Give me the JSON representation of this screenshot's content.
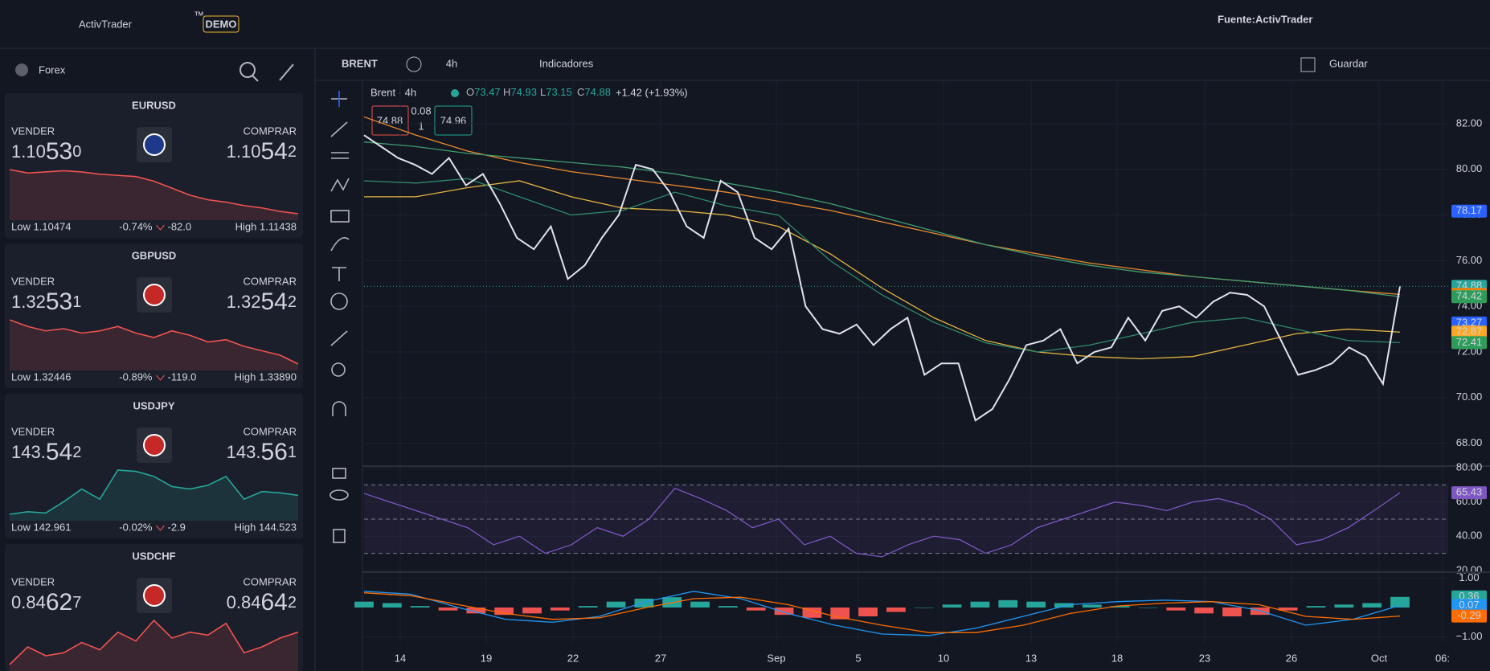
{
  "header": {
    "logo": "ActivTrader",
    "trademark": "™",
    "badge": "DEMO",
    "source": "Fuente:ActivTrader"
  },
  "sidebar": {
    "title": "Forex",
    "sell_label": "VENDER",
    "buy_label": "COMPRAR",
    "cards": [
      {
        "pair": "EURUSD",
        "trend": "down",
        "sell": [
          "1.10",
          "53",
          "0"
        ],
        "buy": [
          "1.10",
          "54",
          "2"
        ],
        "low": "Low 1.10474",
        "change_pct": "-0.74%",
        "change_pts": "-82.0",
        "high": "High 1.11438",
        "spark": [
          1.1088,
          1.1085,
          1.1086,
          1.1087,
          1.1086,
          1.1084,
          1.1083,
          1.1082,
          1.1078,
          1.1072,
          1.1066,
          1.1062,
          1.106,
          1.1057,
          1.1055,
          1.1052,
          1.105
        ]
      },
      {
        "pair": "GBPUSD",
        "trend": "down",
        "sell": [
          "1.32",
          "53",
          "1"
        ],
        "buy": [
          "1.32",
          "54",
          "2"
        ],
        "low": "Low 1.32446",
        "change_pct": "-0.89%",
        "change_pts": "-119.0",
        "high": "High 1.33890",
        "spark": [
          1.3372,
          1.3369,
          1.3367,
          1.3368,
          1.3366,
          1.3367,
          1.3369,
          1.3366,
          1.3364,
          1.3367,
          1.3365,
          1.3362,
          1.3363,
          1.336,
          1.3358,
          1.3356,
          1.3352
        ]
      },
      {
        "pair": "USDJPY",
        "trend": "up",
        "sell": [
          "143.",
          "54",
          "2"
        ],
        "buy": [
          "143.",
          "56",
          "1"
        ],
        "low": "Low 142.961",
        "change_pct": "-0.02%",
        "change_pts": "-2.9",
        "high": "High 144.523",
        "spark": [
          143.1,
          143.12,
          143.11,
          143.2,
          143.3,
          143.22,
          143.45,
          143.44,
          143.4,
          143.32,
          143.3,
          143.33,
          143.4,
          143.22,
          143.28,
          143.27,
          143.25
        ]
      },
      {
        "pair": "USDCHF",
        "trend": "down",
        "sell": [
          "0.84",
          "62",
          "7"
        ],
        "buy": [
          "0.84",
          "64",
          "2"
        ],
        "low": "",
        "change_pct": "",
        "change_pts": "",
        "high": "",
        "spark": [
          0.844,
          0.8452,
          0.8446,
          0.8448,
          0.8455,
          0.845,
          0.8462,
          0.8456,
          0.847,
          0.8458,
          0.8462,
          0.846,
          0.8468,
          0.8448,
          0.8452,
          0.8458,
          0.8462
        ]
      }
    ]
  },
  "toolbar": {
    "symbol": "BRENT",
    "interval": "4h",
    "indicators": "Indicadores",
    "save": "Guardar"
  },
  "legend": {
    "title": "Brent · 4h",
    "ohlc": [
      {
        "k": "O",
        "v": 73.47
      },
      {
        "k": "H",
        "v": 74.93
      },
      {
        "k": "L",
        "v": 73.15
      },
      {
        "k": "C",
        "v": 74.88
      }
    ],
    "change": "+1.42 (+1.93%)",
    "bid": 74.88,
    "spread": 0.08,
    "qty": 1,
    "ask": 74.96
  },
  "time_axis": [
    "14",
    "19",
    "22",
    "27",
    "Sep",
    "5",
    "10",
    "13",
    "18",
    "23",
    "26",
    "Oct",
    "06:"
  ],
  "chart_data": [
    {
      "type": "line",
      "ylim": [
        67,
        83.9
      ],
      "yticks": [
        {
          "value": 68,
          "label": "68.00"
        },
        {
          "value": 70,
          "label": "70.00"
        },
        {
          "value": 72,
          "label": "72.00"
        },
        {
          "value": 74,
          "label": "74.00"
        },
        {
          "value": 76,
          "label": "76.00"
        },
        {
          "value": 78,
          "label": "78.00"
        },
        {
          "value": 80,
          "label": "80.00"
        },
        {
          "value": 82,
          "label": "82.00"
        }
      ],
      "series": [
        {
          "color": "#ef8a2e",
          "values": [
            82.3,
            81.5,
            80.8,
            80.3,
            79.9,
            79.6,
            79.3,
            79.0,
            78.6,
            78.2,
            77.7,
            77.2,
            76.7,
            76.3,
            75.9,
            75.6,
            75.3,
            75.1,
            74.9,
            74.7,
            74.52
          ]
        },
        {
          "color": "#3f9d6e",
          "values": [
            81.2,
            81.0,
            80.7,
            80.5,
            80.3,
            80.1,
            79.8,
            79.4,
            79.0,
            78.5,
            77.9,
            77.3,
            76.7,
            76.2,
            75.8,
            75.5,
            75.3,
            75.1,
            74.9,
            74.7,
            74.42
          ]
        },
        {
          "color": "#e3b341",
          "values": [
            78.8,
            78.8,
            79.2,
            79.5,
            78.8,
            78.3,
            78.2,
            78.0,
            77.5,
            76.3,
            74.8,
            73.5,
            72.5,
            72.0,
            71.8,
            71.7,
            71.8,
            72.3,
            72.8,
            73.0,
            72.87
          ]
        },
        {
          "color": "#2e8b6a",
          "values": [
            79.5,
            79.4,
            79.6,
            78.8,
            78.0,
            78.2,
            79.0,
            78.4,
            78.0,
            76.0,
            74.5,
            73.3,
            72.4,
            72.0,
            72.3,
            72.8,
            73.3,
            73.5,
            73.0,
            72.5,
            72.41
          ]
        },
        {
          "color": "#e0e3eb",
          "values": [
            81.5,
            81.0,
            80.5,
            80.2,
            79.8,
            80.5,
            79.3,
            79.8,
            78.5,
            77.0,
            76.5,
            77.5,
            75.2,
            75.8,
            77.0,
            78.0,
            80.2,
            80.0,
            79.0,
            77.5,
            77.0,
            79.5,
            79.0,
            77.0,
            76.5,
            77.4,
            74.0,
            73.0,
            72.8,
            73.2,
            72.3,
            73.0,
            73.5,
            71.0,
            71.5,
            71.5,
            69.0,
            69.5,
            70.8,
            72.3,
            72.5,
            73.0,
            71.5,
            72.0,
            72.2,
            73.5,
            72.5,
            73.8,
            74.0,
            73.5,
            74.2,
            74.6,
            74.5,
            74.0,
            72.5,
            71.0,
            71.2,
            71.5,
            72.2,
            71.8,
            70.6,
            74.88
          ]
        }
      ],
      "tags": [
        {
          "value": 78.17,
          "color": "#2962ff"
        },
        {
          "value": 74.88,
          "color": "#26a69a"
        },
        {
          "value": 74.52,
          "color": "#f57c00"
        },
        {
          "value": 74.42,
          "color": "#2e9d5a"
        },
        {
          "value": 73.27,
          "color": "#2962ff"
        },
        {
          "value": 72.87,
          "color": "#f9a825"
        },
        {
          "value": 72.41,
          "color": "#2e9d5a"
        }
      ]
    },
    {
      "type": "line",
      "ylim": [
        19,
        81
      ],
      "yticks": [
        {
          "value": 20,
          "label": "20.00"
        },
        {
          "value": 40,
          "label": "40.00"
        },
        {
          "value": 60,
          "label": "60.00"
        },
        {
          "value": 80,
          "label": "80.00"
        }
      ],
      "levels": [
        30,
        50,
        70
      ],
      "series": [
        {
          "color": "#7e57c2",
          "values": [
            65,
            60,
            55,
            50,
            45,
            35,
            40,
            30,
            35,
            45,
            40,
            50,
            68,
            62,
            55,
            45,
            50,
            35,
            40,
            30,
            28,
            35,
            40,
            38,
            30,
            35,
            45,
            50,
            55,
            60,
            58,
            55,
            60,
            62,
            58,
            50,
            35,
            38,
            45,
            55,
            65.43
          ]
        }
      ],
      "tags": [
        {
          "value": 65.43,
          "color": "#7e57c2"
        }
      ]
    },
    {
      "type": "line",
      "ylim": [
        -1.2,
        1.2
      ],
      "yticks": [
        {
          "value": -1,
          "label": "−1.00"
        },
        {
          "value": 1,
          "label": "1.00"
        }
      ],
      "series": [
        {
          "type": "bar",
          "values": [
            0.2,
            0.15,
            0.05,
            -0.1,
            -0.2,
            -0.25,
            -0.2,
            -0.1,
            0.05,
            0.2,
            0.3,
            0.35,
            0.2,
            0.05,
            -0.1,
            -0.25,
            -0.35,
            -0.4,
            -0.3,
            -0.15,
            0.0,
            0.1,
            0.2,
            0.25,
            0.2,
            0.15,
            0.1,
            0.05,
            0.0,
            -0.1,
            -0.2,
            -0.3,
            -0.25,
            -0.1,
            0.05,
            0.1,
            0.15,
            0.36
          ]
        },
        {
          "color": "#2196f3",
          "values": [
            0.55,
            0.45,
            0.0,
            -0.4,
            -0.5,
            -0.3,
            0.2,
            0.55,
            0.3,
            -0.2,
            -0.6,
            -0.9,
            -0.95,
            -0.7,
            -0.3,
            0.1,
            0.2,
            0.25,
            0.2,
            -0.1,
            -0.6,
            -0.4,
            0.07
          ]
        },
        {
          "color": "#ff6d00",
          "values": [
            0.5,
            0.4,
            0.1,
            -0.2,
            -0.4,
            -0.35,
            0.0,
            0.3,
            0.35,
            0.1,
            -0.3,
            -0.6,
            -0.85,
            -0.85,
            -0.6,
            -0.2,
            0.05,
            0.15,
            0.2,
            0.1,
            -0.3,
            -0.4,
            -0.29
          ]
        }
      ],
      "tags": [
        {
          "value": 0.36,
          "color": "#26a69a"
        },
        {
          "value": 0.07,
          "color": "#2196f3"
        },
        {
          "value": -0.29,
          "color": "#ff6d00"
        }
      ]
    }
  ]
}
